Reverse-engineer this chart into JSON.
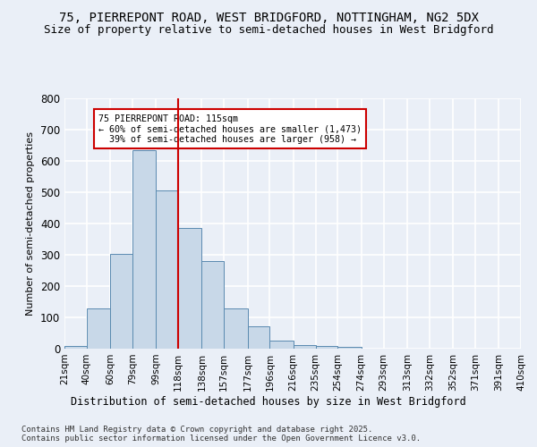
{
  "title1": "75, PIERREPONT ROAD, WEST BRIDGFORD, NOTTINGHAM, NG2 5DX",
  "title2": "Size of property relative to semi-detached houses in West Bridgford",
  "xlabel": "Distribution of semi-detached houses by size in West Bridgford",
  "ylabel": "Number of semi-detached properties",
  "footnote1": "Contains HM Land Registry data © Crown copyright and database right 2025.",
  "footnote2": "Contains public sector information licensed under the Open Government Licence v3.0.",
  "bin_labels": [
    "21sqm",
    "40sqm",
    "60sqm",
    "79sqm",
    "99sqm",
    "118sqm",
    "138sqm",
    "157sqm",
    "177sqm",
    "196sqm",
    "216sqm",
    "235sqm",
    "254sqm",
    "274sqm",
    "293sqm",
    "313sqm",
    "332sqm",
    "352sqm",
    "371sqm",
    "391sqm",
    "410sqm"
  ],
  "bin_edges": [
    21,
    40,
    60,
    79,
    99,
    118,
    138,
    157,
    177,
    196,
    216,
    235,
    254,
    274,
    293,
    313,
    332,
    352,
    371,
    391,
    410
  ],
  "bar_values": [
    8,
    128,
    303,
    635,
    507,
    385,
    280,
    130,
    72,
    27,
    12,
    9,
    5,
    0,
    0,
    0,
    0,
    0,
    0,
    0
  ],
  "bar_color": "#c8d8e8",
  "bar_edge_color": "#5a8ab0",
  "vline_x": 118,
  "vline_color": "#cc0000",
  "annotation_text": "75 PIERREPONT ROAD: 115sqm\n← 60% of semi-detached houses are smaller (1,473)\n  39% of semi-detached houses are larger (958) →",
  "annotation_box_color": "#ffffff",
  "annotation_box_edge": "#cc0000",
  "ylim": [
    0,
    800
  ],
  "yticks": [
    0,
    100,
    200,
    300,
    400,
    500,
    600,
    700,
    800
  ],
  "bg_color": "#eaeff7",
  "plot_bg_color": "#eaeff7",
  "grid_color": "#ffffff",
  "title_fontsize": 10,
  "subtitle_fontsize": 9
}
